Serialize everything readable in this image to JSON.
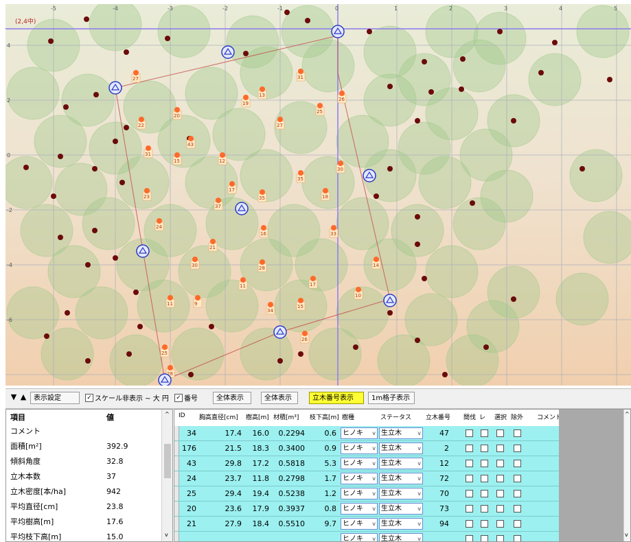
{
  "map": {
    "corner_label": "(2,4中)",
    "top_axis_labels": [
      "-5",
      "-4",
      "-3",
      "-2",
      "-1",
      "0",
      "1",
      "2",
      "3",
      "4",
      "5"
    ],
    "left_axis_labels": [
      "4",
      "2",
      "0",
      "-2",
      "-4",
      "-6"
    ],
    "colors": {
      "grid": "#a9aeb8",
      "axis": "#8b7bf0",
      "boundary": "#c44848",
      "crown": "#9fc98a",
      "tree_dark": "#6b0b0b",
      "tree_orange": "#ff6a2a",
      "station": "#2b3cc0"
    },
    "tree_labels": [
      "31",
      "13",
      "19",
      "26",
      "25",
      "22",
      "20",
      "27",
      "31",
      "43",
      "15",
      "12",
      "30",
      "35",
      "17",
      "35",
      "23",
      "37",
      "18",
      "24",
      "16",
      "21",
      "33",
      "30",
      "28",
      "14",
      "17",
      "11",
      "9",
      "34",
      "15",
      "10",
      "25",
      "28",
      "26",
      "11",
      "27"
    ]
  },
  "controls": {
    "down_arrow": "▼",
    "up_arrow": "▲",
    "btn_display_settings": "表示設定",
    "chk_scale_label": "スケール非表示 ~ 大 円",
    "chk_scale_checked": "✓",
    "chk_mark_label": "番号",
    "chk_mark_checked": "✓",
    "btn_full_display": "全体表示",
    "btn_all_display": "全体表示",
    "btn_tree_number": "立木番号表示",
    "btn_1m_grid": "1m格子表示"
  },
  "summary": {
    "header_item": "項目",
    "header_value": "値",
    "rows": [
      {
        "label": "コメント",
        "value": ""
      },
      {
        "label": "面積[m²]",
        "value": "392.9"
      },
      {
        "label": "傾斜角度",
        "value": "32.8"
      },
      {
        "label": "立木本数",
        "value": "37"
      },
      {
        "label": "立木密度[本/ha]",
        "value": "942"
      },
      {
        "label": "平均直径[cm]",
        "value": "23.8"
      },
      {
        "label": "平均樹高[m]",
        "value": "17.6"
      },
      {
        "label": "平均枝下高[m]",
        "value": "15.0"
      }
    ]
  },
  "table": {
    "headers": [
      "ID",
      "胸高直径[cm]",
      "樹高[m]",
      "材積[m³]",
      "枝下高[m]",
      "樹種",
      "ステータス",
      "立木番号",
      "間伐",
      "レ",
      "選択",
      "除外",
      "コメント"
    ],
    "rows": [
      {
        "id": "34",
        "dbh": "17.4",
        "h": "16.0",
        "vol": "0.2294",
        "crown": "0.6",
        "species": "ヒノキ",
        "status": "生立木",
        "no": "47"
      },
      {
        "id": "176",
        "dbh": "21.5",
        "h": "18.3",
        "vol": "0.3400",
        "crown": "0.9",
        "species": "ヒノキ",
        "status": "生立木",
        "no": "2"
      },
      {
        "id": "43",
        "dbh": "29.8",
        "h": "17.2",
        "vol": "0.5818",
        "crown": "5.3",
        "species": "ヒノキ",
        "status": "生立木",
        "no": "12"
      },
      {
        "id": "24",
        "dbh": "23.7",
        "h": "11.8",
        "vol": "0.2798",
        "crown": "1.7",
        "species": "ヒノキ",
        "status": "生立木",
        "no": "72"
      },
      {
        "id": "25",
        "dbh": "29.4",
        "h": "19.4",
        "vol": "0.5238",
        "crown": "1.2",
        "species": "ヒノキ",
        "status": "生立木",
        "no": "70"
      },
      {
        "id": "20",
        "dbh": "23.6",
        "h": "17.9",
        "vol": "0.3937",
        "crown": "0.8",
        "species": "ヒノキ",
        "status": "生立木",
        "no": "73"
      },
      {
        "id": "21",
        "dbh": "27.9",
        "h": "18.4",
        "vol": "0.5510",
        "crown": "9.7",
        "species": "ヒノキ",
        "status": "生立木",
        "no": "94"
      },
      {
        "id": "",
        "dbh": "",
        "h": "",
        "vol": "",
        "crown": "",
        "species": "ヒノキ",
        "status": "生立木",
        "no": ""
      }
    ]
  }
}
